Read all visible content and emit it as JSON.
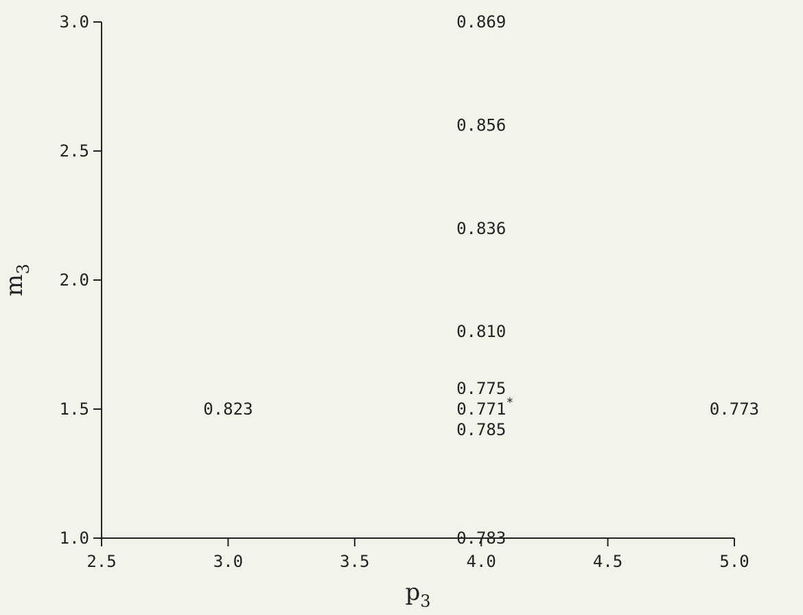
{
  "chart_data": {
    "type": "scatter",
    "xlabel": {
      "main": "p",
      "sub": "3"
    },
    "ylabel": {
      "main": "m",
      "sub": "3"
    },
    "xlim": [
      2.5,
      5.0
    ],
    "ylim": [
      1.0,
      3.0
    ],
    "x_ticks": [
      "2.5",
      "3.0",
      "3.5",
      "4.0",
      "4.5",
      "5.0"
    ],
    "y_ticks": [
      "1.0",
      "1.5",
      "2.0",
      "2.5",
      "3.0"
    ],
    "grid": false,
    "points": [
      {
        "x": 3.0,
        "y": 1.5,
        "label": "0.823"
      },
      {
        "x": 4.0,
        "y": 1.0,
        "label": "0.783"
      },
      {
        "x": 4.0,
        "y": 1.42,
        "label": "0.785"
      },
      {
        "x": 4.0,
        "y": 1.5,
        "label": "0.771*"
      },
      {
        "x": 4.0,
        "y": 1.58,
        "label": "0.775"
      },
      {
        "x": 4.0,
        "y": 1.8,
        "label": "0.810"
      },
      {
        "x": 4.0,
        "y": 2.2,
        "label": "0.836"
      },
      {
        "x": 4.0,
        "y": 2.6,
        "label": "0.856"
      },
      {
        "x": 4.0,
        "y": 3.0,
        "label": "0.869"
      },
      {
        "x": 5.0,
        "y": 1.5,
        "label": "0.773"
      }
    ]
  }
}
